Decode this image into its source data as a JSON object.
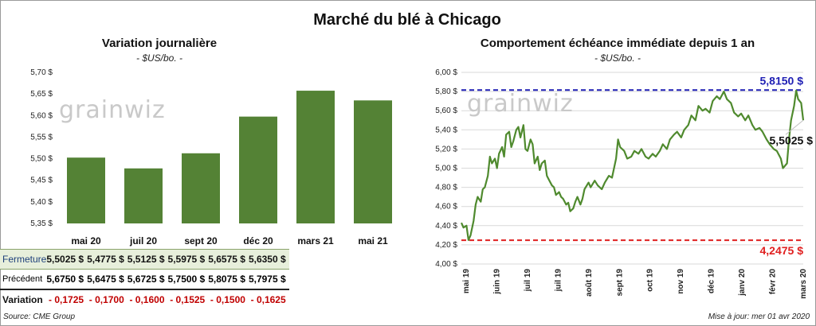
{
  "page_title": "Marché du blé à Chicago",
  "left": {
    "subtitle": "Variation journalière",
    "unit": "- $US/bo. -",
    "watermark": "grainwiz",
    "table": {
      "row_labels": [
        "Fermeture",
        "Précédent",
        "Variation"
      ],
      "fermeture": [
        "5,5025  $",
        "5,4775  $",
        "5,5125  $",
        "5,5975  $",
        "5,6575  $",
        "5,6350  $"
      ],
      "precedent": [
        "5,6750  $",
        "5,6475  $",
        "5,6725  $",
        "5,7500  $",
        "5,8075  $",
        "5,7975  $"
      ],
      "variation": [
        "- 0,1725",
        "- 0,1700",
        "- 0,1600",
        "- 0,1525",
        "- 0,1500",
        "- 0,1625"
      ]
    }
  },
  "right": {
    "subtitle": "Comportement  échéance immédiate depuis 1 an",
    "unit": "- $US/bo. -",
    "watermark": "grainwiz",
    "max_label": "5,8150 $",
    "min_label": "4,2475 $",
    "last_label": "5,5025 $"
  },
  "footer": {
    "source": "Source: CME Group",
    "update": "Mise à jour: mer 01 avr 2020"
  },
  "colors": {
    "bar": "#548235",
    "line": "#4f8a2e",
    "max_line": "#1f1fb4",
    "min_line": "#e02020",
    "negative": "#c00000"
  },
  "chart_data": [
    {
      "type": "bar",
      "title": "Variation journalière",
      "ylabel": "$US/bo.",
      "categories": [
        "mai 20",
        "juil 20",
        "sept 20",
        "déc 20",
        "mars 21",
        "mai 21"
      ],
      "values": [
        5.5025,
        5.4775,
        5.5125,
        5.5975,
        5.6575,
        5.635
      ],
      "ylim": [
        5.35,
        5.7
      ],
      "yticks": [
        "5,35 $",
        "5,40 $",
        "5,45 $",
        "5,50 $",
        "5,55 $",
        "5,60 $",
        "5,65 $",
        "5,70 $"
      ],
      "grid": false
    },
    {
      "type": "line",
      "title": "Comportement  échéance immédiate depuis 1 an",
      "ylabel": "$US/bo.",
      "ylim": [
        4.0,
        6.0
      ],
      "yticks": [
        "4,00 $",
        "4,20 $",
        "4,40 $",
        "4,60 $",
        "4,80 $",
        "5,00 $",
        "5,20 $",
        "5,40 $",
        "5,60 $",
        "5,80 $",
        "6,00 $"
      ],
      "xticks": [
        "mai 19",
        "juin 19",
        "juil 19",
        "juil 19",
        "août 19",
        "sept 19",
        "oct 19",
        "nov 19",
        "déc 19",
        "janv 20",
        "févr 20",
        "mars 20"
      ],
      "xrange": [
        "2019-05-01",
        "2020-04-01"
      ],
      "grid": true,
      "max_value": 5.815,
      "min_value": 4.2475,
      "last_value": 5.5025,
      "series": [
        {
          "points": [
            [
              "2019-05-01",
              4.43
            ],
            [
              "2019-05-03",
              4.38
            ],
            [
              "2019-05-06",
              4.4
            ],
            [
              "2019-05-08",
              4.25
            ],
            [
              "2019-05-10",
              4.3
            ],
            [
              "2019-05-13",
              4.45
            ],
            [
              "2019-05-15",
              4.62
            ],
            [
              "2019-05-17",
              4.7
            ],
            [
              "2019-05-20",
              4.65
            ],
            [
              "2019-05-22",
              4.78
            ],
            [
              "2019-05-24",
              4.8
            ],
            [
              "2019-05-27",
              4.92
            ],
            [
              "2019-05-29",
              5.12
            ],
            [
              "2019-05-31",
              5.05
            ],
            [
              "2019-06-03",
              5.1
            ],
            [
              "2019-06-05",
              5.0
            ],
            [
              "2019-06-07",
              5.15
            ],
            [
              "2019-06-10",
              5.22
            ],
            [
              "2019-06-12",
              5.12
            ],
            [
              "2019-06-14",
              5.35
            ],
            [
              "2019-06-17",
              5.38
            ],
            [
              "2019-06-19",
              5.22
            ],
            [
              "2019-06-21",
              5.28
            ],
            [
              "2019-06-24",
              5.4
            ],
            [
              "2019-06-26",
              5.43
            ],
            [
              "2019-06-28",
              5.32
            ],
            [
              "2019-07-01",
              5.45
            ],
            [
              "2019-07-03",
              5.2
            ],
            [
              "2019-07-05",
              5.18
            ],
            [
              "2019-07-08",
              5.3
            ],
            [
              "2019-07-10",
              5.25
            ],
            [
              "2019-07-12",
              5.05
            ],
            [
              "2019-07-15",
              5.12
            ],
            [
              "2019-07-17",
              4.98
            ],
            [
              "2019-07-19",
              5.05
            ],
            [
              "2019-07-22",
              5.08
            ],
            [
              "2019-07-24",
              4.92
            ],
            [
              "2019-07-26",
              4.88
            ],
            [
              "2019-07-29",
              4.82
            ],
            [
              "2019-07-31",
              4.8
            ],
            [
              "2019-08-02",
              4.72
            ],
            [
              "2019-08-05",
              4.75
            ],
            [
              "2019-08-07",
              4.7
            ],
            [
              "2019-08-09",
              4.68
            ],
            [
              "2019-08-12",
              4.62
            ],
            [
              "2019-08-14",
              4.64
            ],
            [
              "2019-08-16",
              4.55
            ],
            [
              "2019-08-19",
              4.58
            ],
            [
              "2019-08-21",
              4.65
            ],
            [
              "2019-08-23",
              4.7
            ],
            [
              "2019-08-26",
              4.62
            ],
            [
              "2019-08-28",
              4.68
            ],
            [
              "2019-08-30",
              4.78
            ],
            [
              "2019-09-03",
              4.85
            ],
            [
              "2019-09-05",
              4.8
            ],
            [
              "2019-09-09",
              4.87
            ],
            [
              "2019-09-12",
              4.82
            ],
            [
              "2019-09-16",
              4.78
            ],
            [
              "2019-09-19",
              4.85
            ],
            [
              "2019-09-23",
              4.92
            ],
            [
              "2019-09-26",
              4.9
            ],
            [
              "2019-09-30",
              5.1
            ],
            [
              "2019-10-02",
              5.3
            ],
            [
              "2019-10-04",
              5.22
            ],
            [
              "2019-10-08",
              5.18
            ],
            [
              "2019-10-11",
              5.1
            ],
            [
              "2019-10-15",
              5.12
            ],
            [
              "2019-10-18",
              5.18
            ],
            [
              "2019-10-22",
              5.15
            ],
            [
              "2019-10-25",
              5.2
            ],
            [
              "2019-10-29",
              5.12
            ],
            [
              "2019-11-01",
              5.1
            ],
            [
              "2019-11-05",
              5.15
            ],
            [
              "2019-11-08",
              5.12
            ],
            [
              "2019-11-12",
              5.18
            ],
            [
              "2019-11-15",
              5.25
            ],
            [
              "2019-11-19",
              5.2
            ],
            [
              "2019-11-22",
              5.3
            ],
            [
              "2019-11-26",
              5.35
            ],
            [
              "2019-11-29",
              5.38
            ],
            [
              "2019-12-03",
              5.32
            ],
            [
              "2019-12-06",
              5.4
            ],
            [
              "2019-12-10",
              5.45
            ],
            [
              "2019-12-13",
              5.55
            ],
            [
              "2019-12-17",
              5.5
            ],
            [
              "2019-12-20",
              5.65
            ],
            [
              "2019-12-24",
              5.6
            ],
            [
              "2019-12-27",
              5.62
            ],
            [
              "2019-12-31",
              5.58
            ],
            [
              "2020-01-03",
              5.7
            ],
            [
              "2020-01-07",
              5.75
            ],
            [
              "2020-01-10",
              5.72
            ],
            [
              "2020-01-14",
              5.8
            ],
            [
              "2020-01-17",
              5.72
            ],
            [
              "2020-01-21",
              5.68
            ],
            [
              "2020-01-24",
              5.58
            ],
            [
              "2020-01-28",
              5.54
            ],
            [
              "2020-01-31",
              5.57
            ],
            [
              "2020-02-04",
              5.5
            ],
            [
              "2020-02-07",
              5.55
            ],
            [
              "2020-02-11",
              5.45
            ],
            [
              "2020-02-14",
              5.4
            ],
            [
              "2020-02-18",
              5.42
            ],
            [
              "2020-02-21",
              5.38
            ],
            [
              "2020-02-25",
              5.3
            ],
            [
              "2020-02-28",
              5.25
            ],
            [
              "2020-03-03",
              5.2
            ],
            [
              "2020-03-06",
              5.18
            ],
            [
              "2020-03-10",
              5.1
            ],
            [
              "2020-03-12",
              5.0
            ],
            [
              "2020-03-16",
              5.05
            ],
            [
              "2020-03-18",
              5.3
            ],
            [
              "2020-03-20",
              5.5
            ],
            [
              "2020-03-23",
              5.65
            ],
            [
              "2020-03-25",
              5.81
            ],
            [
              "2020-03-27",
              5.72
            ],
            [
              "2020-03-30",
              5.68
            ],
            [
              "2020-04-01",
              5.5
            ]
          ]
        }
      ]
    }
  ]
}
